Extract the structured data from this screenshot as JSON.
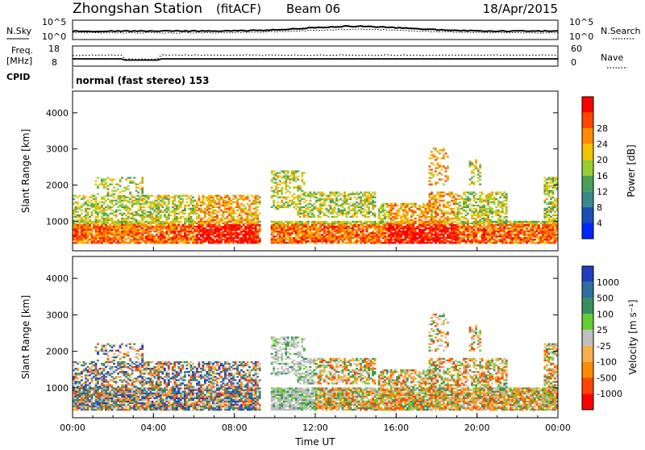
{
  "header": {
    "station": "Zhongshan Station",
    "mode": "(fitACF)",
    "beam": "Beam 06",
    "date": "18/Apr/2015"
  },
  "nsky_panel": {
    "left_label": "N.Sky",
    "right_label": "N.Search",
    "yticks": [
      "10^5",
      "10^0"
    ]
  },
  "freq_panel": {
    "left_label_top": "Freq.",
    "left_label_unit": "[MHz]",
    "right_label": "Nave",
    "left_ticks": [
      "18",
      "8"
    ],
    "right_ticks": [
      "60",
      "0"
    ]
  },
  "cpid": {
    "label": "CPID",
    "text": "normal (fast stereo)  153"
  },
  "colors": {
    "power": [
      "#0026ff",
      "#1c4fb6",
      "#3b8a8a",
      "#4aa05a",
      "#9acd32",
      "#f2c200",
      "#ff8c00",
      "#ff4500",
      "#ff0000"
    ],
    "velocity": [
      "#ff0000",
      "#ff4500",
      "#ff8c00",
      "#f5b04d",
      "#bfbfbf",
      "#66cc33",
      "#3a8f5e",
      "#2f6f9f",
      "#1f3fbf"
    ]
  },
  "chart_data": [
    {
      "type": "heatmap",
      "title": "Power",
      "ylabel": "Slant Range [km]",
      "ylim": [
        180,
        4600
      ],
      "yticks": [
        "1000",
        "2000",
        "3000",
        "4000"
      ],
      "colorbar": {
        "label": "Power [dB]",
        "ticks": [
          "4",
          "8",
          "12",
          "16",
          "20",
          "24",
          "28"
        ],
        "range": [
          0,
          30
        ]
      },
      "series": [
        {
          "range_km": [
            300,
            1800
          ],
          "hours": [
            [
              0.0,
              9.3
            ],
            [
              9.4,
              24.0
            ]
          ]
        }
      ]
    },
    {
      "type": "heatmap",
      "title": "Velocity",
      "ylabel": "Slant Range [km]",
      "xlabel": "Time UT",
      "xticks": [
        "00:00",
        "04:00",
        "08:00",
        "12:00",
        "16:00",
        "20:00",
        "00:00"
      ],
      "ylim": [
        180,
        4600
      ],
      "yticks": [
        "1000",
        "2000",
        "3000",
        "4000"
      ],
      "colorbar": {
        "label": "Velocity [m s⁻¹]",
        "ticks": [
          "1000",
          "500",
          "100",
          "25",
          "-25",
          "-100",
          "-500",
          "-1000"
        ]
      }
    }
  ]
}
